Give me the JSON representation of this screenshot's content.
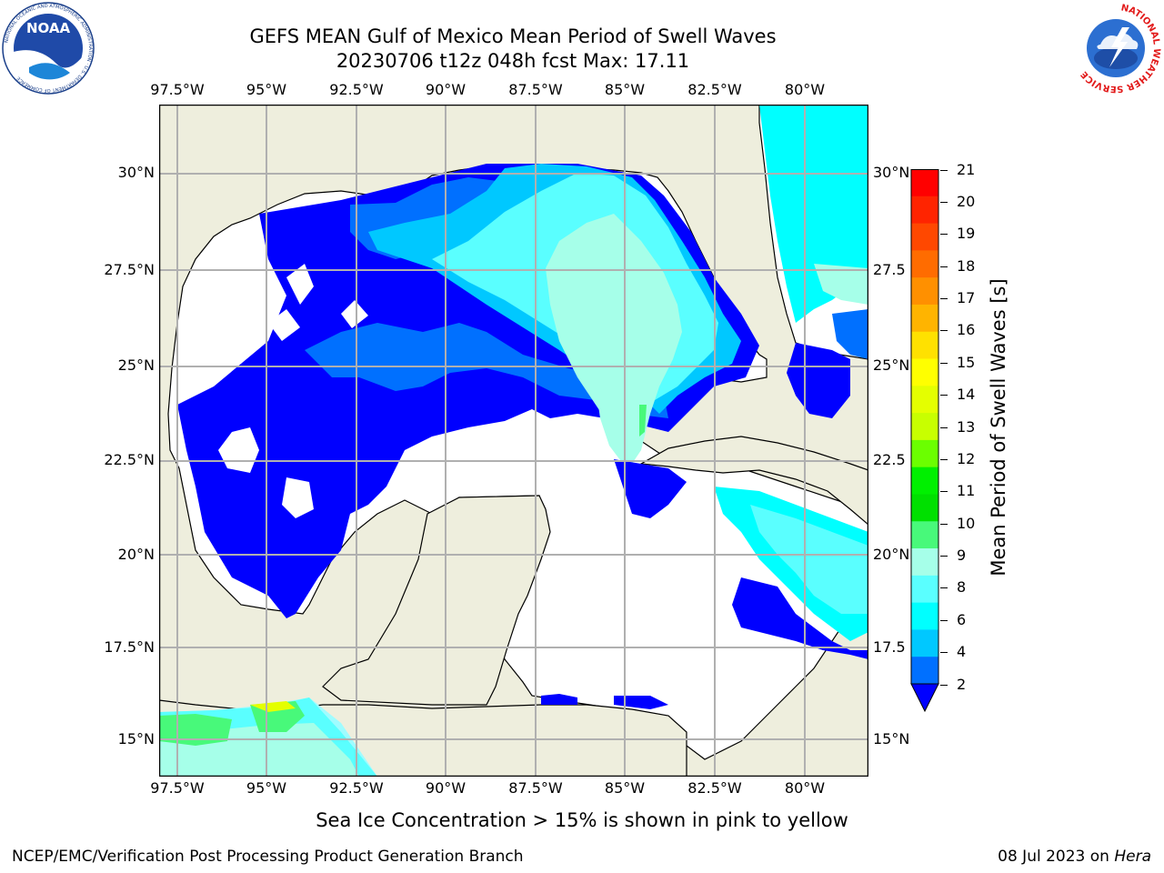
{
  "header": {
    "title_line1": "GEFS MEAN Gulf of Mexico Mean Period of Swell Waves",
    "title_line2": "20230706 t12z 048h fcst   Max: 17.11"
  },
  "logos": {
    "left_name": "NOAA",
    "left_ring": "NATIONAL OCEANIC AND ATMOSPHERIC ADMINISTRATION · U.S. DEPARTMENT OF COMMERCE",
    "right_ring": "NATIONAL WEATHER SERVICE"
  },
  "map": {
    "lon_ticks": [
      "97.5°W",
      "95°W",
      "92.5°W",
      "90°W",
      "87.5°W",
      "85°W",
      "82.5°W",
      "80°W"
    ],
    "lat_ticks_left": [
      "30°N",
      "27.5°N",
      "25°N",
      "22.5°N",
      "20°N",
      "17.5°N",
      "15°N"
    ],
    "lat_ticks_right": [
      "30°N",
      "27.5",
      "25°N",
      "22.5",
      "20°N",
      "17.5",
      "15°N"
    ],
    "colors": {
      "land": "#eeeedd",
      "grid": "#b0b0b0"
    }
  },
  "colorbar": {
    "title": "Mean Period of Swell Waves [s]",
    "labels": [
      "21",
      "20",
      "19",
      "18",
      "17",
      "16",
      "15",
      "14",
      "13",
      "12",
      "11",
      "10",
      "9",
      "8",
      "6",
      "4",
      "2"
    ],
    "colors_top_to_bottom": [
      "#ff0000",
      "#ff2400",
      "#ff4800",
      "#ff6c00",
      "#ff9000",
      "#ffb400",
      "#ffe100",
      "#ffff00",
      "#e4ff00",
      "#c8ff00",
      "#6bff00",
      "#00f000",
      "#00e000",
      "#48f97a",
      "#a6ffe9",
      "#5affff",
      "#00ffff",
      "#00c8ff",
      "#0070ff"
    ],
    "extend_color": "#0000ff"
  },
  "caption": "Sea Ice Concentration > 15% is shown in pink to yellow",
  "footer": {
    "left": "NCEP/EMC/Verification Post Processing Product Generation Branch",
    "right_prefix": "08 Jul 2023 on ",
    "right_host": "Hera"
  }
}
